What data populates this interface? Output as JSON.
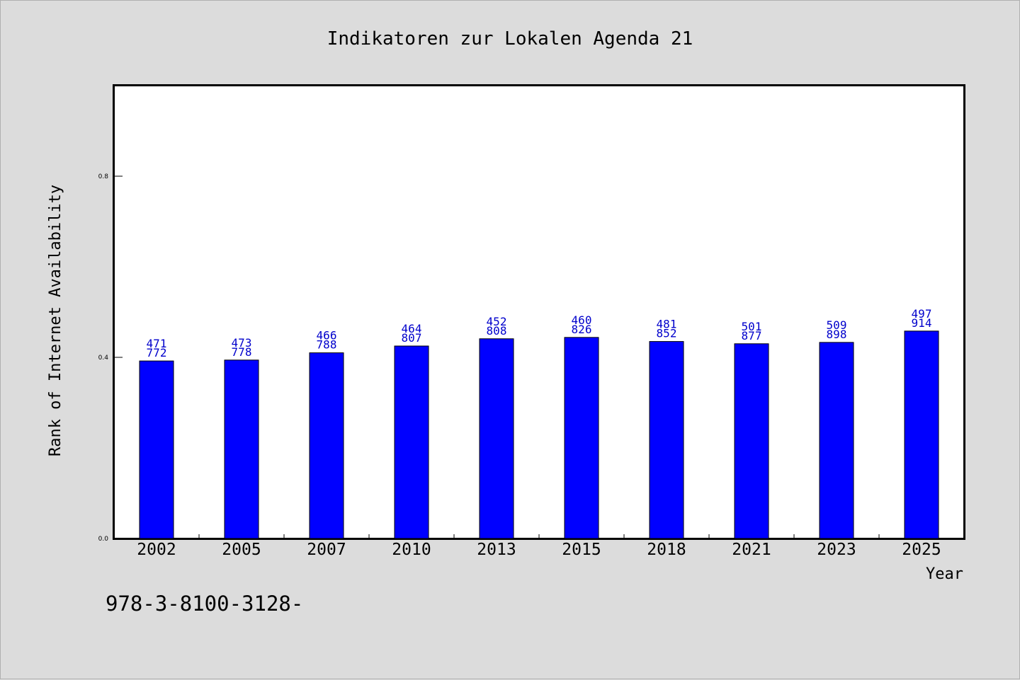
{
  "chart_data": {
    "type": "bar",
    "title": "Indikatoren zur Lokalen Agenda 21",
    "xlabel": "Year",
    "ylabel": "Rank of Internet Availability",
    "categories": [
      "2002",
      "2005",
      "2007",
      "2010",
      "2013",
      "2015",
      "2018",
      "2021",
      "2023",
      "2025"
    ],
    "values": [
      0.392,
      0.394,
      0.41,
      0.425,
      0.441,
      0.444,
      0.435,
      0.43,
      0.433,
      0.458
    ],
    "data_labels_top": [
      "471",
      "473",
      "466",
      "464",
      "452",
      "460",
      "481",
      "501",
      "509",
      "497"
    ],
    "data_labels_bottom": [
      "772",
      "778",
      "788",
      "807",
      "808",
      "826",
      "852",
      "877",
      "898",
      "914"
    ],
    "yticks": [
      "0.0",
      "0.4",
      "0.8"
    ],
    "ytick_values": [
      0.0,
      0.4,
      0.8
    ],
    "ylim": [
      0,
      1.0
    ],
    "grid": false,
    "bar_color": "#0000ff",
    "label_color": "#0000cc"
  },
  "footer_text": "978-3-8100-3128-"
}
